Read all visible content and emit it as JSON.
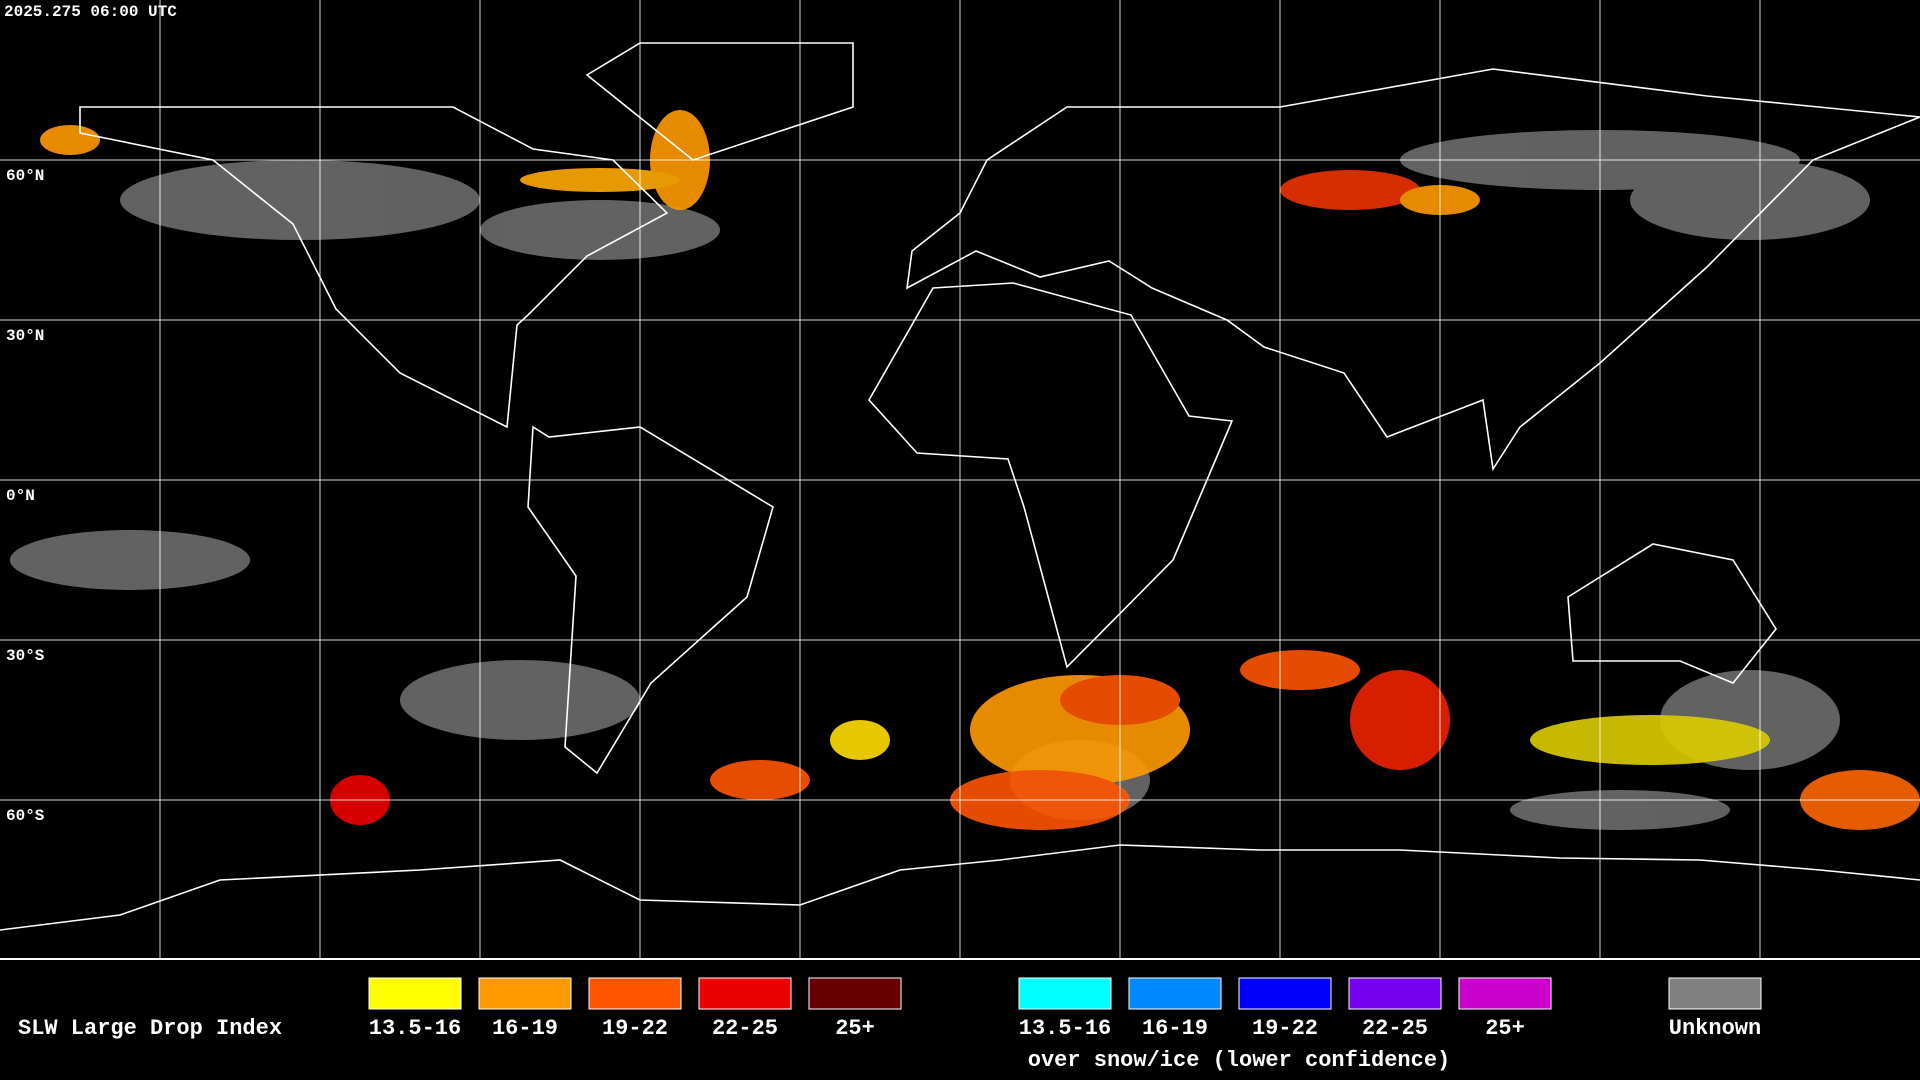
{
  "header": {
    "timestamp": "2025.275 06:00 UTC"
  },
  "latitude_labels": [
    "60°N",
    "30°N",
    "0°N",
    "30°S",
    "60°S"
  ],
  "legend": {
    "title": "SLW Large Drop Index",
    "items": [
      {
        "label": "13.5-16",
        "color": "#ffff00"
      },
      {
        "label": "16-19",
        "color": "#ff9900"
      },
      {
        "label": "19-22",
        "color": "#ff5500"
      },
      {
        "label": "22-25",
        "color": "#ee0000"
      },
      {
        "label": "25+",
        "color": "#660000"
      }
    ],
    "snow_items": [
      {
        "label": "13.5-16",
        "color": "#00ffff"
      },
      {
        "label": "16-19",
        "color": "#0088ff"
      },
      {
        "label": "19-22",
        "color": "#0000ff"
      },
      {
        "label": "22-25",
        "color": "#7700ee"
      },
      {
        "label": "25+",
        "color": "#cc00cc"
      }
    ],
    "snow_caption": "over snow/ice (lower confidence)",
    "unknown": {
      "label": "Unknown",
      "color": "#808080"
    }
  }
}
